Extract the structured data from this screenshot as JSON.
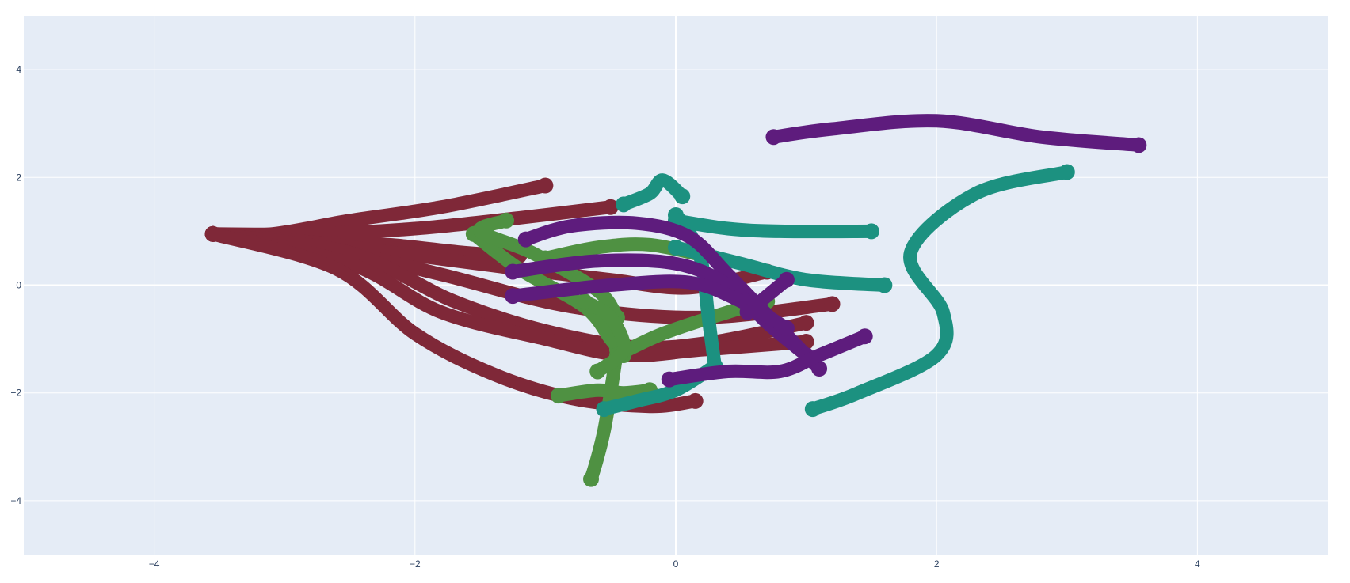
{
  "chart_data": {
    "type": "line",
    "title": "",
    "xlabel": "",
    "ylabel": "",
    "xlim": [
      -5,
      5
    ],
    "ylim": [
      -5,
      5
    ],
    "x_ticks": [
      -4,
      -2,
      0,
      2,
      4
    ],
    "y_ticks": [
      -4,
      -2,
      0,
      2,
      4
    ],
    "x_tick_labels": [
      "−4",
      "−2",
      "0",
      "2",
      "4"
    ],
    "y_tick_labels": [
      "−4",
      "−2",
      "0",
      "2",
      "4"
    ],
    "grid": true,
    "legend": "none",
    "plot_background": "#E5ECF6",
    "grid_color": "#FFFFFF",
    "series": [
      {
        "color": "#7F2838",
        "x": [
          -3.55,
          -3.1,
          -2.5,
          -1.8,
          -1.0
        ],
        "y": [
          0.95,
          0.95,
          1.2,
          1.45,
          1.85
        ]
      },
      {
        "color": "#7F2838",
        "x": [
          -3.55,
          -2.8,
          -2.0,
          -1.2,
          -0.5
        ],
        "y": [
          0.95,
          0.95,
          1.05,
          1.25,
          1.45
        ]
      },
      {
        "color": "#7F2838",
        "x": [
          -3.55,
          -2.8,
          -2.2,
          -1.6,
          -1.2
        ],
        "y": [
          0.95,
          0.8,
          0.75,
          0.6,
          0.55
        ]
      },
      {
        "color": "#7F2838",
        "x": [
          -3.55,
          -2.8,
          -2.0,
          -1.2,
          -0.5,
          0.1,
          0.7
        ],
        "y": [
          0.95,
          0.8,
          0.55,
          0.3,
          0.1,
          -0.05,
          0.25
        ]
      },
      {
        "color": "#7F2838",
        "x": [
          -3.55,
          -2.7,
          -1.8,
          -0.8,
          0.2,
          1.2
        ],
        "y": [
          0.95,
          0.7,
          0.2,
          -0.4,
          -0.6,
          -0.35
        ]
      },
      {
        "color": "#7F2838",
        "x": [
          -3.55,
          -2.5,
          -1.7,
          -1.0,
          -0.3,
          0.3,
          1.0
        ],
        "y": [
          0.95,
          0.6,
          -0.3,
          -0.85,
          -1.15,
          -1.05,
          -0.7
        ]
      },
      {
        "color": "#7F2838",
        "x": [
          -3.55,
          -2.5,
          -1.8,
          -1.0,
          -0.4,
          0.2,
          1.0
        ],
        "y": [
          0.95,
          0.4,
          -0.5,
          -1.0,
          -1.3,
          -1.2,
          -1.05
        ]
      },
      {
        "color": "#7F2838",
        "x": [
          -3.55,
          -2.6,
          -2.0,
          -1.4,
          -0.8,
          -0.2,
          0.15
        ],
        "y": [
          0.95,
          0.3,
          -0.9,
          -1.65,
          -2.1,
          -2.25,
          -2.15
        ]
      },
      {
        "color": "#4F9142",
        "x": [
          -1.55,
          -1.2,
          -0.7,
          -0.5,
          -0.4
        ],
        "y": [
          0.95,
          0.3,
          -0.4,
          -1.0,
          -1.3
        ]
      },
      {
        "color": "#4F9142",
        "x": [
          -1.3,
          -1.5,
          -1.1,
          -0.6,
          -0.45
        ],
        "y": [
          1.2,
          1.0,
          0.6,
          -0.1,
          -0.6
        ]
      },
      {
        "color": "#4F9142",
        "x": [
          -0.45,
          -0.5,
          -0.55,
          -0.6,
          -0.65
        ],
        "y": [
          -1.2,
          -2.0,
          -2.7,
          -3.2,
          -3.6
        ]
      },
      {
        "color": "#4F9142",
        "x": [
          -0.9,
          -0.6,
          -0.4,
          -0.2
        ],
        "y": [
          -2.05,
          -1.95,
          -2.0,
          -1.95
        ]
      },
      {
        "color": "#4F9142",
        "x": [
          -0.45,
          -0.1,
          0.4,
          0.7
        ],
        "y": [
          -1.3,
          -0.9,
          -0.5,
          -0.3
        ]
      },
      {
        "color": "#4F9142",
        "x": [
          -1.0,
          -0.6,
          -0.2,
          0.3
        ],
        "y": [
          0.5,
          0.7,
          0.75,
          0.5
        ]
      },
      {
        "color": "#4F9142",
        "x": [
          -0.7,
          -0.5,
          -0.4,
          -0.6
        ],
        "y": [
          -0.3,
          -0.6,
          -1.2,
          -1.6
        ]
      },
      {
        "color": "#1C9180",
        "x": [
          -0.55,
          -0.3,
          0.0,
          0.3
        ],
        "y": [
          -2.3,
          -2.15,
          -1.95,
          -1.5
        ]
      },
      {
        "color": "#1C9180",
        "x": [
          0.3,
          0.25,
          0.2,
          0.1,
          0.0
        ],
        "y": [
          -1.5,
          -0.6,
          0.4,
          1.0,
          1.3
        ]
      },
      {
        "color": "#1C9180",
        "x": [
          -0.4,
          -0.2,
          -0.1,
          0.05
        ],
        "y": [
          1.5,
          1.7,
          1.95,
          1.65
        ]
      },
      {
        "color": "#1C9180",
        "x": [
          0.0,
          0.4,
          0.8,
          1.5
        ],
        "y": [
          1.2,
          1.05,
          1.0,
          1.0
        ]
      },
      {
        "color": "#1C9180",
        "x": [
          0.0,
          0.5,
          1.0,
          1.6
        ],
        "y": [
          0.7,
          0.4,
          0.1,
          0.0
        ]
      },
      {
        "color": "#1C9180",
        "x": [
          1.05,
          1.4,
          2.0,
          2.05,
          1.8,
          2.3,
          3.0
        ],
        "y": [
          -2.3,
          -2.0,
          -1.3,
          -0.5,
          0.6,
          1.7,
          2.1
        ]
      },
      {
        "color": "#5E1C7D",
        "x": [
          0.75,
          1.2,
          2.0,
          2.8,
          3.55
        ],
        "y": [
          2.75,
          2.9,
          3.05,
          2.75,
          2.6
        ]
      },
      {
        "color": "#5E1C7D",
        "x": [
          -1.15,
          -0.8,
          -0.3,
          0.1,
          0.4,
          0.8,
          1.1
        ],
        "y": [
          0.85,
          1.1,
          1.15,
          0.9,
          0.2,
          -0.8,
          -1.55
        ]
      },
      {
        "color": "#5E1C7D",
        "x": [
          -1.25,
          -0.6,
          0.0,
          0.4,
          0.7,
          1.0
        ],
        "y": [
          0.25,
          0.45,
          0.4,
          0.0,
          -0.7,
          -1.3
        ]
      },
      {
        "color": "#5E1C7D",
        "x": [
          -1.25,
          -0.5,
          0.1,
          0.5,
          0.85
        ],
        "y": [
          -0.2,
          0.0,
          0.05,
          -0.3,
          -0.8
        ]
      },
      {
        "color": "#5E1C7D",
        "x": [
          -0.05,
          0.4,
          0.8,
          1.1,
          1.45
        ],
        "y": [
          -1.75,
          -1.6,
          -1.6,
          -1.3,
          -0.95
        ]
      },
      {
        "color": "#5E1C7D",
        "x": [
          0.55,
          0.7,
          0.85
        ],
        "y": [
          -0.5,
          -0.2,
          0.1
        ]
      }
    ]
  }
}
